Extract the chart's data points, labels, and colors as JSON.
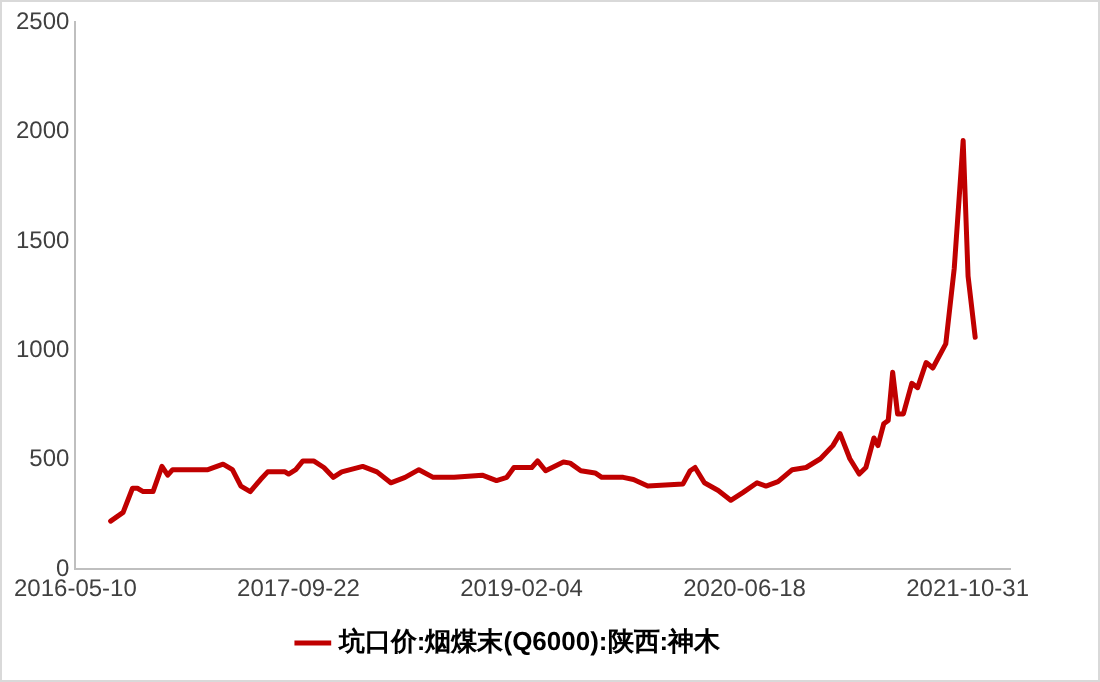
{
  "chart_data": {
    "type": "line",
    "x": [
      "2016-07-28",
      "2016-08-25",
      "2016-09-15",
      "2016-09-26",
      "2016-10-09",
      "2016-10-31",
      "2016-11-20",
      "2016-12-03",
      "2016-12-14",
      "2017-03-03",
      "2017-04-06",
      "2017-04-27",
      "2017-05-16",
      "2017-06-06",
      "2017-06-29",
      "2017-07-15",
      "2017-08-23",
      "2017-08-31",
      "2017-09-16",
      "2017-10-02",
      "2017-10-26",
      "2017-11-18",
      "2017-12-09",
      "2017-12-28",
      "2018-02-13",
      "2018-03-17",
      "2018-04-17",
      "2018-05-19",
      "2018-06-19",
      "2018-07-21",
      "2018-09-06",
      "2018-11-08",
      "2018-12-10",
      "2019-01-02",
      "2019-01-18",
      "2019-02-27",
      "2019-03-12",
      "2019-03-30",
      "2019-05-09",
      "2019-05-24",
      "2019-06-17",
      "2019-07-19",
      "2019-08-03",
      "2019-09-20",
      "2019-10-13",
      "2019-11-14",
      "2020-02-01",
      "2020-02-17",
      "2020-02-28",
      "2020-03-20",
      "2020-04-20",
      "2020-05-18",
      "2020-06-14",
      "2020-07-16",
      "2020-08-05",
      "2020-09-01",
      "2020-10-03",
      "2020-11-03",
      "2020-12-05",
      "2021-01-02",
      "2021-01-18",
      "2021-02-09",
      "2021-03-02",
      "2021-03-17",
      "2021-04-04",
      "2021-04-13",
      "2021-04-26",
      "2021-05-06",
      "2021-05-16",
      "2021-05-27",
      "2021-06-09",
      "2021-06-28",
      "2021-07-11",
      "2021-07-30",
      "2021-08-14",
      "2021-09-12",
      "2021-10-01",
      "2021-10-21",
      "2021-11-01",
      "2021-11-17"
    ],
    "series": [
      {
        "name": "坑口价:烟煤末(Q6000):陕西:神木",
        "color": "#c00000",
        "values": [
          220,
          260,
          370,
          370,
          355,
          355,
          470,
          430,
          455,
          455,
          480,
          455,
          380,
          355,
          410,
          445,
          445,
          435,
          455,
          495,
          495,
          465,
          420,
          445,
          470,
          445,
          395,
          420,
          455,
          420,
          420,
          430,
          405,
          420,
          465,
          465,
          495,
          450,
          490,
          485,
          450,
          440,
          420,
          420,
          410,
          380,
          390,
          450,
          465,
          395,
          360,
          315,
          350,
          395,
          380,
          400,
          455,
          465,
          505,
          565,
          620,
          505,
          435,
          465,
          600,
          565,
          665,
          680,
          900,
          710,
          710,
          850,
          830,
          945,
          920,
          1030,
          1375,
          1960,
          1340,
          1060
        ]
      }
    ],
    "xlim": [
      "2016-05-10",
      "2022-02-03"
    ],
    "xticks": [
      "2016-05-10",
      "2017-09-22",
      "2019-02-04",
      "2020-06-18",
      "2021-10-31"
    ],
    "ylim": [
      0,
      2500
    ],
    "yticks": [
      0,
      500,
      1000,
      1500,
      2000,
      2500
    ],
    "grid": false,
    "legend": "bottom",
    "marker": "none",
    "line_style": "solid"
  }
}
